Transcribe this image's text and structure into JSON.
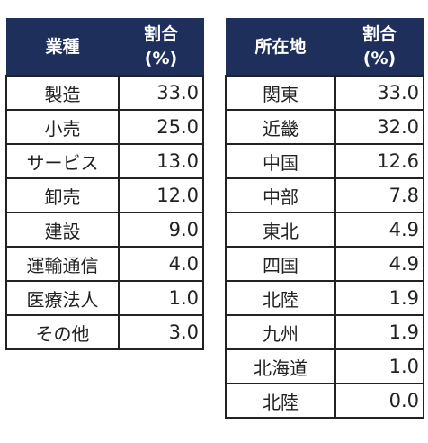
{
  "industry_table": {
    "header_name": "業種",
    "header_pct_line1": "割合",
    "header_pct_line2": "(%)",
    "rows": [
      {
        "name": "製造",
        "value": "33.0"
      },
      {
        "name": "小売",
        "value": "25.0"
      },
      {
        "name": "サービス",
        "value": "13.0"
      },
      {
        "name": "卸売",
        "value": "12.0"
      },
      {
        "name": "建設",
        "value": "9.0"
      },
      {
        "name": "運輸通信",
        "value": "4.0"
      },
      {
        "name": "医療法人",
        "value": "1.0"
      },
      {
        "name": "その他",
        "value": "3.0"
      }
    ]
  },
  "location_table": {
    "header_name": "所在地",
    "header_pct_line1": "割合",
    "header_pct_line2": "(%)",
    "rows": [
      {
        "name": "関東",
        "value": "33.0"
      },
      {
        "name": "近畿",
        "value": "32.0"
      },
      {
        "name": "中国",
        "value": "12.6"
      },
      {
        "name": "中部",
        "value": "7.8"
      },
      {
        "name": "東北",
        "value": "4.9"
      },
      {
        "name": "四国",
        "value": "4.9"
      },
      {
        "name": "北陸",
        "value": "1.9"
      },
      {
        "name": "九州",
        "value": "1.9"
      },
      {
        "name": "北海道",
        "value": "1.0"
      },
      {
        "name": "北陸",
        "value": "0.0"
      }
    ]
  },
  "colors": {
    "header_bg": "#1f2f5c",
    "header_text": "#ffffff",
    "border": "#222222"
  }
}
